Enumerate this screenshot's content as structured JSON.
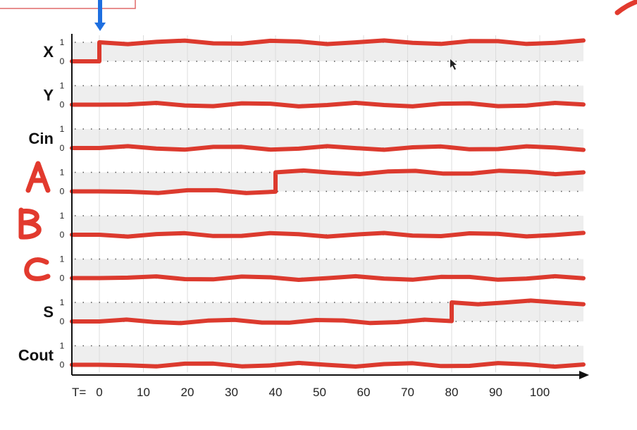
{
  "chart_data": {
    "type": "line",
    "title": "",
    "xlabel": "",
    "time_prefix": "T=",
    "xlim": [
      0,
      110
    ],
    "x_ticks": [
      0,
      10,
      20,
      30,
      40,
      50,
      60,
      70,
      80,
      90,
      100
    ],
    "level_labels": [
      "0",
      "1"
    ],
    "grid": true,
    "series": [
      {
        "name": "X",
        "points": [
          [
            0,
            0
          ],
          [
            0,
            1
          ],
          [
            110,
            1
          ]
        ]
      },
      {
        "name": "Y",
        "points": [
          [
            0,
            0
          ],
          [
            110,
            0
          ]
        ]
      },
      {
        "name": "Cin",
        "points": [
          [
            0,
            0
          ],
          [
            110,
            0
          ]
        ]
      },
      {
        "name": "A",
        "points": [
          [
            0,
            0
          ],
          [
            40,
            0
          ],
          [
            40,
            1
          ],
          [
            110,
            1
          ]
        ]
      },
      {
        "name": "B",
        "points": [
          [
            0,
            0
          ],
          [
            110,
            0
          ]
        ]
      },
      {
        "name": "C",
        "points": [
          [
            0,
            0
          ],
          [
            110,
            0
          ]
        ]
      },
      {
        "name": "S",
        "points": [
          [
            0,
            0
          ],
          [
            80,
            0
          ],
          [
            80,
            1
          ],
          [
            110,
            1
          ]
        ]
      },
      {
        "name": "Cout",
        "points": [
          [
            0,
            0
          ],
          [
            110,
            0
          ]
        ]
      }
    ],
    "row_labels": [
      "X",
      "Y",
      "Cin",
      "",
      "",
      "",
      "S",
      "Cout"
    ],
    "handwritten_labels": [
      "A",
      "B",
      "C"
    ]
  },
  "colors": {
    "waveform": "#dc3a2e",
    "marker_arrow": "#1e6fe0",
    "band": "#eeeeee"
  }
}
